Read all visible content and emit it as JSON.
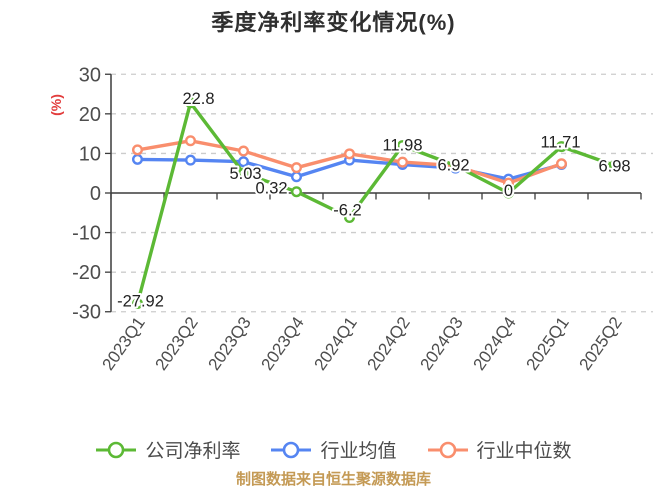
{
  "title": "季度净利率变化情况(%)",
  "y_axis_label": "(%)",
  "footer": "制图数据来自恒生聚源数据库",
  "colors": {
    "company_line": "#5cb935",
    "industry_avg_line": "#5585f2",
    "industry_median_line": "#f98e6d",
    "y_axis_unit_label": "#e23c3c",
    "axis": "#3c3c3c",
    "gridline": "#cccccc",
    "tick_label": "#4d4d4d",
    "data_label": "#222222",
    "footer_text": "#c49a55"
  },
  "chart_data": {
    "type": "line",
    "title": "季度净利率变化情况(%)",
    "ylabel": "(%)",
    "ylim": [
      -30,
      30
    ],
    "y_ticks": [
      30,
      20,
      10,
      0,
      -10,
      -20,
      -30
    ],
    "grid": "horizontal dashed",
    "legend_position": "bottom",
    "categories": [
      "2023Q1",
      "2023Q2",
      "2023Q3",
      "2023Q4",
      "2024Q1",
      "2024Q2",
      "2024Q3",
      "2024Q4",
      "2025Q1",
      "2025Q2"
    ],
    "series": [
      {
        "name": "公司净利率",
        "color": "#5cb935",
        "values": [
          -27.92,
          22.8,
          5.03,
          0.32,
          -6.2,
          11.98,
          6.92,
          0,
          11.71,
          6.98
        ],
        "labels": [
          "-27.92",
          "22.8",
          "5.03",
          "0.32",
          "-6.2",
          "11.98",
          "6.92",
          "0",
          "11.71",
          "6.98"
        ],
        "labeled": true
      },
      {
        "name": "行业均值",
        "color": "#5585f2",
        "values": [
          8.5,
          8.3,
          7.9,
          4.1,
          8.3,
          7.2,
          6.3,
          3.5,
          7.2,
          null
        ],
        "labeled": false
      },
      {
        "name": "行业中位数",
        "color": "#f98e6d",
        "values": [
          10.9,
          13.2,
          10.6,
          6.4,
          9.9,
          7.8,
          6.9,
          2.5,
          7.4,
          null
        ],
        "labeled": false
      }
    ]
  }
}
